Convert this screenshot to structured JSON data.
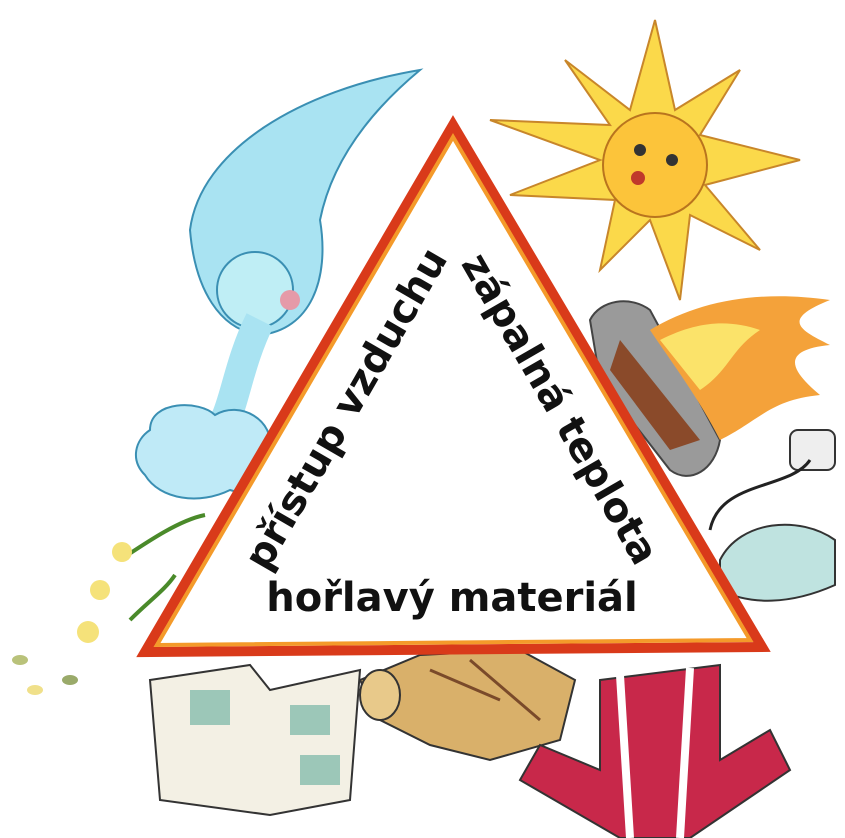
{
  "labels": [
    "přístup vzduchu",
    "zápalná teplota",
    "hořlavý materiál"
  ]
}
